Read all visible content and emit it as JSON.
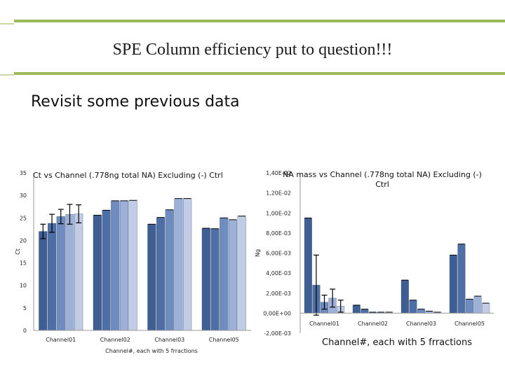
{
  "slide": {
    "title": "SPE Column efficiency put to question!!!",
    "subtitle": "Revisit some previous data",
    "colors": {
      "accent_rule": "#9bbb59"
    }
  },
  "chart_data": [
    {
      "type": "bar",
      "title": "Ct vs Channel (.778ng total NA) Excluding (-) Ctrl",
      "xlabel": "Channel#, each with 5 frractions",
      "ylabel": "Ct",
      "categories": [
        "Channel01",
        "Channel02",
        "Channel03",
        "Channel05"
      ],
      "ylim": [
        0,
        35
      ],
      "yticks": [
        "0",
        "5",
        "10",
        "15",
        "20",
        "25",
        "30",
        "35"
      ],
      "series": [
        {
          "color": "#3f5f94",
          "values": [
            22.0,
            25.6,
            23.6,
            22.7
          ]
        },
        {
          "color": "#4e6fa6",
          "values": [
            23.8,
            26.7,
            25.1,
            22.6
          ]
        },
        {
          "color": "#6f8cc0",
          "values": [
            25.3,
            28.8,
            26.8,
            25.0
          ]
        },
        {
          "color": "#9db1d8",
          "values": [
            25.8,
            28.8,
            29.3,
            24.6
          ]
        },
        {
          "color": "#c1cde6",
          "values": [
            25.9,
            28.9,
            29.3,
            25.4
          ]
        }
      ],
      "error_bars": [
        [
          1.6,
          0,
          0,
          0
        ],
        [
          2.0,
          0,
          0,
          0
        ],
        [
          1.6,
          0,
          0,
          0
        ],
        [
          2.2,
          0,
          0,
          0
        ],
        [
          2.0,
          0,
          0,
          0
        ]
      ],
      "grid": false
    },
    {
      "type": "bar",
      "title": "NA mass vs Channel (.778ng total NA) Excluding (-) Ctrl",
      "xlabel": "Channel#, each with 5 frractions",
      "ylabel": "Ng",
      "categories": [
        "Channel01",
        "Channel02",
        "Channel03",
        "Channel05"
      ],
      "ylim": [
        -0.002,
        0.014
      ],
      "yticks": [
        "-2,00E-03",
        "0,00E+00",
        "2,00E-03",
        "4,00E-03",
        "6,00E-03",
        "8,00E-03",
        "1,00E-02",
        "1,20E-02",
        "1,40E-02"
      ],
      "series": [
        {
          "color": "#3f5f94",
          "values": [
            0.0095,
            0.0008,
            0.0033,
            0.0058
          ]
        },
        {
          "color": "#4e6fa6",
          "values": [
            0.0028,
            0.0004,
            0.0013,
            0.0069
          ]
        },
        {
          "color": "#6f8cc0",
          "values": [
            0.0011,
            0.0001,
            0.0004,
            0.0014
          ]
        },
        {
          "color": "#9db1d8",
          "values": [
            0.0015,
            0.0001,
            0.0002,
            0.0017
          ]
        },
        {
          "color": "#c1cde6",
          "values": [
            0.0007,
            0.0001,
            0.0001,
            0.001
          ]
        }
      ],
      "error_bars": [
        [
          0,
          0,
          0,
          0
        ],
        [
          0.003,
          0,
          0,
          0
        ],
        [
          0.0007,
          0,
          0,
          0
        ],
        [
          0.0009,
          0,
          0,
          0
        ],
        [
          0.0006,
          0,
          0,
          0
        ]
      ],
      "grid": false
    }
  ]
}
